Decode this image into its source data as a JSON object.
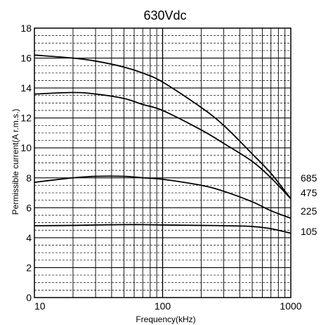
{
  "chart_data": {
    "type": "line",
    "title": "630Vdc",
    "xlabel": "Frequency(kHz)",
    "ylabel": "Permissible current(A r.m.s.)",
    "x_scale": "log",
    "xlim": [
      10,
      1000
    ],
    "ylim": [
      0,
      18
    ],
    "x_ticks": [
      10,
      100,
      1000
    ],
    "y_ticks": [
      0,
      2,
      4,
      6,
      8,
      10,
      12,
      14,
      16,
      18
    ],
    "grid": true,
    "series": [
      {
        "name": "685",
        "x": [
          10,
          20,
          30,
          50,
          70,
          100,
          200,
          300,
          500,
          700,
          1000
        ],
        "y": [
          16.2,
          16.0,
          15.8,
          15.4,
          15.0,
          14.4,
          12.7,
          11.5,
          9.6,
          8.3,
          6.6
        ]
      },
      {
        "name": "475",
        "x": [
          10,
          20,
          30,
          50,
          70,
          100,
          200,
          300,
          500,
          700,
          1000
        ],
        "y": [
          13.6,
          13.7,
          13.6,
          13.3,
          12.9,
          12.5,
          11.2,
          10.3,
          9.1,
          8.0,
          6.6
        ]
      },
      {
        "name": "225",
        "x": [
          10,
          20,
          30,
          50,
          70,
          100,
          200,
          300,
          500,
          700,
          1000
        ],
        "y": [
          7.7,
          8.0,
          8.1,
          8.1,
          8.0,
          7.9,
          7.5,
          7.1,
          6.4,
          5.8,
          5.3
        ]
      },
      {
        "name": "105",
        "x": [
          10,
          20,
          30,
          50,
          70,
          100,
          200,
          300,
          500,
          700,
          1000
        ],
        "y": [
          4.8,
          4.82,
          4.85,
          4.87,
          4.87,
          4.85,
          4.82,
          4.8,
          4.75,
          4.6,
          4.3
        ]
      }
    ]
  }
}
